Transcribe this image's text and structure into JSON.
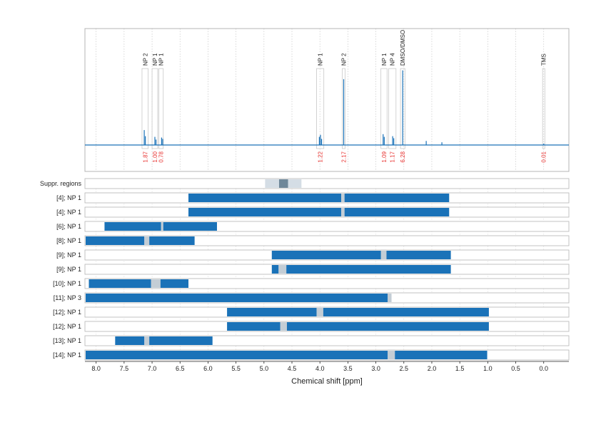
{
  "chart_data": {
    "type": "nmr-spectrum-with-region-bars",
    "xlabel": "Chemical shift [ppm]",
    "xlim": [
      8.2,
      -0.45
    ],
    "x_ticks": [
      "8.0",
      "7.5",
      "7.0",
      "6.5",
      "6.0",
      "5.5",
      "5.0",
      "4.5",
      "4.0",
      "3.5",
      "3.0",
      "2.5",
      "2.0",
      "1.5",
      "1.0",
      "0.5",
      "0.0"
    ],
    "x_tick_values": [
      8.0,
      7.5,
      7.0,
      6.5,
      6.0,
      5.5,
      5.0,
      4.5,
      4.0,
      3.5,
      3.0,
      2.5,
      2.0,
      1.5,
      1.0,
      0.5,
      0.0
    ],
    "grid": "dotted vertical",
    "colors": {
      "accent": "#1a72b8",
      "integral_text": "#e8312f",
      "suppressed_light": "#d4dde5",
      "suppressed_dark": "#6e8799",
      "gap": "#c3cdd5",
      "box": "#c8c8c8"
    },
    "peak_labels": [
      {
        "label": "NP 2",
        "lo": 7.07,
        "hi": 7.18,
        "integral": "1.87"
      },
      {
        "label": "NP 1",
        "lo": 6.9,
        "hi": 7.0,
        "integral": "1.00"
      },
      {
        "label": "NP 1",
        "lo": 6.8,
        "hi": 6.88,
        "integral": "0.78"
      },
      {
        "label": "NP 1",
        "lo": 3.93,
        "hi": 4.06,
        "integral": "1.22"
      },
      {
        "label": "NP 2",
        "lo": 3.55,
        "hi": 3.6,
        "integral": "2.17"
      },
      {
        "label": "NP 1",
        "lo": 2.8,
        "hi": 2.91,
        "integral": "1.09"
      },
      {
        "label": "NP 4",
        "lo": 2.64,
        "hi": 2.77,
        "integral": "1.17"
      },
      {
        "label": "DMSO/DMSO",
        "lo": 2.48,
        "hi": 2.56,
        "integral": "6.28"
      },
      {
        "label": "TMS",
        "lo": -0.02,
        "hi": 0.02,
        "integral": "0.01"
      }
    ],
    "spectrum_peaks": [
      {
        "x": 7.14,
        "h": 0.22
      },
      {
        "x": 7.12,
        "h": 0.13
      },
      {
        "x": 6.95,
        "h": 0.12
      },
      {
        "x": 6.93,
        "h": 0.08
      },
      {
        "x": 6.83,
        "h": 0.11
      },
      {
        "x": 6.81,
        "h": 0.09
      },
      {
        "x": 4.01,
        "h": 0.12
      },
      {
        "x": 3.99,
        "h": 0.15
      },
      {
        "x": 3.97,
        "h": 0.09
      },
      {
        "x": 3.575,
        "h": 0.97
      },
      {
        "x": 2.87,
        "h": 0.16
      },
      {
        "x": 2.85,
        "h": 0.12
      },
      {
        "x": 2.7,
        "h": 0.13
      },
      {
        "x": 2.68,
        "h": 0.1
      },
      {
        "x": 2.52,
        "h": 1.1
      },
      {
        "x": 2.1,
        "h": 0.06
      },
      {
        "x": 1.82,
        "h": 0.04
      },
      {
        "x": 0.0,
        "h": 0.02
      }
    ],
    "suppressed_regions": {
      "label": "Suppr. regions",
      "outer": [
        4.33,
        4.98
      ],
      "inner": [
        4.57,
        4.73
      ]
    },
    "rows": [
      {
        "label": "[4]; NP 1",
        "segments": [
          [
            6.35,
            3.62
          ],
          [
            3.56,
            1.69
          ]
        ],
        "gaps": [
          [
            3.62,
            3.56
          ]
        ]
      },
      {
        "label": "[4]; NP 1",
        "segments": [
          [
            6.35,
            3.62
          ],
          [
            3.56,
            1.69
          ]
        ],
        "gaps": [
          [
            3.62,
            3.56
          ]
        ]
      },
      {
        "label": "[6]; NP 1",
        "segments": [
          [
            7.85,
            6.84
          ],
          [
            6.8,
            5.84
          ]
        ],
        "gaps": [
          [
            6.84,
            6.8
          ]
        ]
      },
      {
        "label": "[8]; NP 1",
        "segments": [
          [
            8.2,
            7.14
          ],
          [
            7.05,
            6.24
          ]
        ],
        "gaps": [
          [
            7.14,
            7.05
          ]
        ]
      },
      {
        "label": "[9]; NP 1",
        "segments": [
          [
            4.86,
            2.91
          ],
          [
            2.81,
            1.66
          ]
        ],
        "gaps": [
          [
            2.91,
            2.81
          ]
        ]
      },
      {
        "label": "[9]; NP 1",
        "segments": [
          [
            4.86,
            4.74
          ],
          [
            4.6,
            1.66
          ]
        ],
        "gaps": [
          [
            4.74,
            4.6
          ]
        ]
      },
      {
        "label": "[10]; NP 1",
        "segments": [
          [
            8.13,
            7.02
          ],
          [
            6.85,
            6.35
          ]
        ],
        "gaps": [
          [
            7.02,
            6.85
          ]
        ]
      },
      {
        "label": "[11]; NP 3",
        "segments": [
          [
            8.2,
            2.79
          ]
        ],
        "gaps": [
          [
            2.79,
            2.72
          ]
        ]
      },
      {
        "label": "[12]; NP 1",
        "segments": [
          [
            5.66,
            4.06
          ],
          [
            3.94,
            0.98
          ]
        ],
        "gaps": [
          [
            4.06,
            3.94
          ]
        ]
      },
      {
        "label": "[12]; NP 1",
        "segments": [
          [
            5.66,
            4.71
          ],
          [
            4.59,
            0.98
          ]
        ],
        "gaps": [
          [
            4.71,
            4.59
          ]
        ]
      },
      {
        "label": "[13]; NP 1",
        "segments": [
          [
            7.66,
            7.14
          ],
          [
            7.05,
            5.92
          ]
        ],
        "gaps": [
          [
            7.14,
            7.05
          ]
        ]
      },
      {
        "label": "[14]; NP 1",
        "segments": [
          [
            8.2,
            2.79
          ],
          [
            2.66,
            1.01
          ]
        ],
        "gaps": [
          [
            2.79,
            2.66
          ]
        ]
      }
    ]
  }
}
